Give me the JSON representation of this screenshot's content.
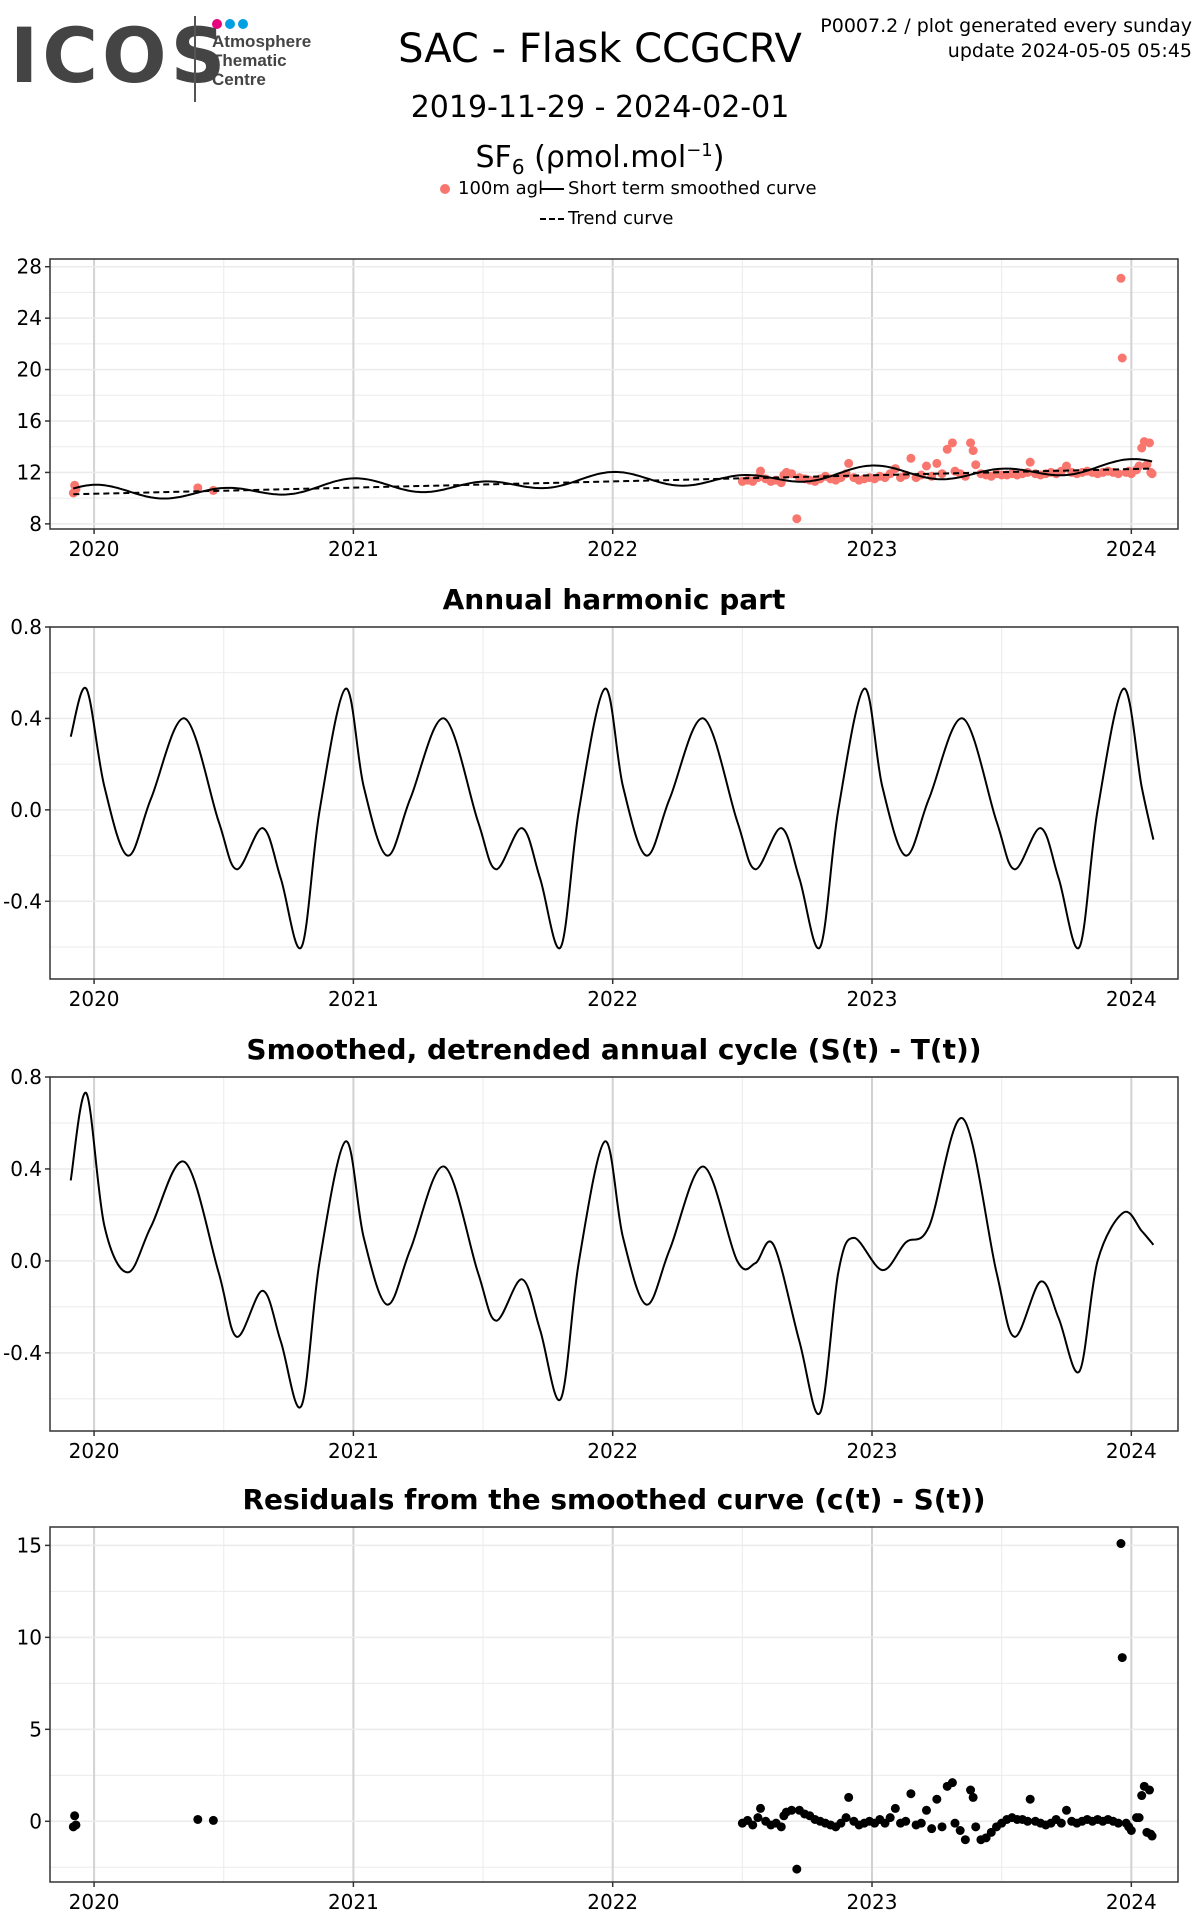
{
  "header": {
    "logo_text": "ICOS",
    "logo_sub": [
      "Atmosphere",
      "Thematic",
      "Centre"
    ],
    "logo_dot_colors": [
      "#e6007e",
      "#009fe3",
      "#00a0e3"
    ],
    "title": "SAC - Flask CCGCRV",
    "date_range": "2019-11-29 - 2024-02-01",
    "gas_main": "SF",
    "gas_sub": "6",
    "gas_unit": " (ρmol.mol",
    "gas_sup": "−1",
    "gas_close": ")",
    "meta_line1": "P0007.2 / plot generated every sunday",
    "meta_line2": "update  2024-05-05 05:45"
  },
  "legend": {
    "points_label": "100m agl",
    "smooth_label": "Short term smoothed curve",
    "trend_label": "Trend curve",
    "point_color": "#f8766d"
  },
  "chart_data": [
    {
      "type": "scatter",
      "title": "",
      "xlabel": "",
      "ylabel": "",
      "xlim": [
        2019.83,
        2024.18
      ],
      "ylim": [
        7.6,
        28.6
      ],
      "yticks": [
        8,
        12,
        16,
        20,
        24,
        28
      ],
      "xticks": [
        2020,
        2021,
        2022,
        2023,
        2024
      ],
      "grid": true,
      "series": [
        {
          "name": "100m agl",
          "points": [
            [
              2019.92,
              10.4
            ],
            [
              2019.925,
              11.0
            ],
            [
              2019.93,
              10.7
            ],
            [
              2020.4,
              10.8
            ],
            [
              2020.46,
              10.6
            ],
            [
              2022.5,
              11.3
            ],
            [
              2022.52,
              11.4
            ],
            [
              2022.54,
              11.3
            ],
            [
              2022.56,
              11.6
            ],
            [
              2022.57,
              12.1
            ],
            [
              2022.59,
              11.5
            ],
            [
              2022.61,
              11.3
            ],
            [
              2022.63,
              11.4
            ],
            [
              2022.65,
              11.2
            ],
            [
              2022.66,
              11.8
            ],
            [
              2022.67,
              12.0
            ],
            [
              2022.69,
              11.9
            ],
            [
              2022.71,
              8.4
            ],
            [
              2022.72,
              11.6
            ],
            [
              2022.74,
              11.5
            ],
            [
              2022.76,
              11.4
            ],
            [
              2022.78,
              11.3
            ],
            [
              2022.8,
              11.5
            ],
            [
              2022.82,
              11.7
            ],
            [
              2022.84,
              11.5
            ],
            [
              2022.86,
              11.4
            ],
            [
              2022.88,
              11.6
            ],
            [
              2022.9,
              11.9
            ],
            [
              2022.91,
              12.7
            ],
            [
              2022.93,
              11.6
            ],
            [
              2022.95,
              11.4
            ],
            [
              2022.97,
              11.5
            ],
            [
              2022.99,
              11.6
            ],
            [
              2023.01,
              11.5
            ],
            [
              2023.03,
              11.7
            ],
            [
              2023.05,
              11.6
            ],
            [
              2023.07,
              11.9
            ],
            [
              2023.09,
              12.3
            ],
            [
              2023.11,
              11.6
            ],
            [
              2023.13,
              11.8
            ],
            [
              2023.15,
              13.1
            ],
            [
              2023.17,
              11.6
            ],
            [
              2023.19,
              11.8
            ],
            [
              2023.21,
              12.5
            ],
            [
              2023.23,
              11.7
            ],
            [
              2023.25,
              12.7
            ],
            [
              2023.27,
              11.9
            ],
            [
              2023.29,
              13.8
            ],
            [
              2023.31,
              14.3
            ],
            [
              2023.32,
              12.1
            ],
            [
              2023.34,
              11.9
            ],
            [
              2023.36,
              11.7
            ],
            [
              2023.38,
              14.3
            ],
            [
              2023.39,
              13.7
            ],
            [
              2023.4,
              12.6
            ],
            [
              2023.42,
              11.9
            ],
            [
              2023.44,
              11.8
            ],
            [
              2023.46,
              11.7
            ],
            [
              2023.48,
              11.9
            ],
            [
              2023.5,
              11.8
            ],
            [
              2023.52,
              11.8
            ],
            [
              2023.54,
              11.9
            ],
            [
              2023.56,
              11.8
            ],
            [
              2023.58,
              11.9
            ],
            [
              2023.6,
              12.0
            ],
            [
              2023.61,
              12.8
            ],
            [
              2023.63,
              11.9
            ],
            [
              2023.65,
              11.8
            ],
            [
              2023.67,
              11.9
            ],
            [
              2023.69,
              12.0
            ],
            [
              2023.71,
              11.9
            ],
            [
              2023.73,
              12.1
            ],
            [
              2023.75,
              12.5
            ],
            [
              2023.77,
              12.0
            ],
            [
              2023.79,
              11.9
            ],
            [
              2023.81,
              12.0
            ],
            [
              2023.83,
              12.1
            ],
            [
              2023.85,
              12.0
            ],
            [
              2023.87,
              11.9
            ],
            [
              2023.89,
              12.0
            ],
            [
              2023.91,
              12.1
            ],
            [
              2023.93,
              12.0
            ],
            [
              2023.95,
              11.9
            ],
            [
              2023.96,
              27.1
            ],
            [
              2023.965,
              20.9
            ],
            [
              2023.98,
              12.0
            ],
            [
              2023.99,
              12.1
            ],
            [
              2024.0,
              11.9
            ],
            [
              2024.02,
              12.2
            ],
            [
              2024.03,
              12.5
            ],
            [
              2024.04,
              13.9
            ],
            [
              2024.05,
              14.4
            ],
            [
              2024.06,
              12.6
            ],
            [
              2024.07,
              14.3
            ],
            [
              2024.075,
              12.0
            ],
            [
              2024.08,
              11.9
            ]
          ]
        },
        {
          "name": "Short term smoothed curve",
          "style": "solid"
        },
        {
          "name": "Trend curve",
          "style": "dashed"
        }
      ]
    },
    {
      "type": "line",
      "title": "Annual harmonic part",
      "xlabel": "",
      "ylabel": "",
      "xlim": [
        2019.83,
        2024.18
      ],
      "ylim": [
        -0.74,
        0.8
      ],
      "yticks": [
        0.8,
        0.4,
        0.0,
        -0.4
      ],
      "ytick_labels": [
        "0.8",
        "0.4",
        "0.0",
        "-0.4"
      ],
      "xticks": [
        2020,
        2021,
        2022,
        2023,
        2024
      ],
      "grid": true,
      "x": [
        2019.91,
        2019.97,
        2020.04,
        2020.13,
        2020.22,
        2020.35,
        2020.48,
        2020.55,
        2020.65,
        2020.72,
        2020.8,
        2020.87,
        2020.97,
        2021.04,
        2021.13,
        2021.22,
        2021.35,
        2021.48,
        2021.55,
        2021.65,
        2021.72,
        2021.8,
        2021.87,
        2021.97,
        2022.04,
        2022.13,
        2022.22,
        2022.35,
        2022.48,
        2022.55,
        2022.65,
        2022.72,
        2022.8,
        2022.87,
        2022.97,
        2023.04,
        2023.13,
        2023.22,
        2023.35,
        2023.48,
        2023.55,
        2023.65,
        2023.72,
        2023.8,
        2023.87,
        2023.97,
        2024.04,
        2024.085
      ],
      "y": [
        0.32,
        0.53,
        0.1,
        -0.2,
        0.05,
        0.4,
        -0.05,
        -0.26,
        -0.08,
        -0.3,
        -0.6,
        0.0,
        0.53,
        0.1,
        -0.2,
        0.05,
        0.4,
        -0.05,
        -0.26,
        -0.08,
        -0.3,
        -0.6,
        0.0,
        0.53,
        0.1,
        -0.2,
        0.05,
        0.4,
        -0.05,
        -0.26,
        -0.08,
        -0.3,
        -0.6,
        0.0,
        0.53,
        0.1,
        -0.2,
        0.05,
        0.4,
        -0.05,
        -0.26,
        -0.08,
        -0.3,
        -0.6,
        0.0,
        0.53,
        0.1,
        -0.13
      ]
    },
    {
      "type": "line",
      "title": "Smoothed, detrended annual cycle (S(t) - T(t))",
      "xlabel": "",
      "ylabel": "",
      "xlim": [
        2019.83,
        2024.18
      ],
      "ylim": [
        -0.74,
        0.8
      ],
      "yticks": [
        0.8,
        0.4,
        0.0,
        -0.4
      ],
      "ytick_labels": [
        "0.8",
        "0.4",
        "0.0",
        "-0.4"
      ],
      "xticks": [
        2020,
        2021,
        2022,
        2023,
        2024
      ],
      "grid": true,
      "x": [
        2019.91,
        2019.97,
        2020.04,
        2020.13,
        2020.22,
        2020.35,
        2020.48,
        2020.55,
        2020.65,
        2020.72,
        2020.8,
        2020.87,
        2020.97,
        2021.04,
        2021.13,
        2021.22,
        2021.35,
        2021.48,
        2021.55,
        2021.65,
        2021.72,
        2021.8,
        2021.87,
        2021.97,
        2022.04,
        2022.13,
        2022.22,
        2022.35,
        2022.48,
        2022.55,
        2022.62,
        2022.72,
        2022.8,
        2022.87,
        2022.93,
        2023.04,
        2023.13,
        2023.22,
        2023.35,
        2023.48,
        2023.55,
        2023.65,
        2023.72,
        2023.8,
        2023.87,
        2023.97,
        2024.04,
        2024.085
      ],
      "y": [
        0.35,
        0.73,
        0.15,
        -0.05,
        0.15,
        0.43,
        -0.05,
        -0.33,
        -0.13,
        -0.35,
        -0.63,
        0.0,
        0.52,
        0.1,
        -0.19,
        0.05,
        0.41,
        -0.05,
        -0.26,
        -0.08,
        -0.3,
        -0.6,
        0.0,
        0.52,
        0.1,
        -0.19,
        0.05,
        0.41,
        0.0,
        -0.01,
        0.07,
        -0.35,
        -0.66,
        -0.05,
        0.1,
        -0.04,
        0.08,
        0.15,
        0.62,
        -0.05,
        -0.33,
        -0.09,
        -0.25,
        -0.48,
        0.0,
        0.21,
        0.13,
        0.07
      ]
    },
    {
      "type": "scatter",
      "title": "Residuals from the smoothed curve (c(t) - S(t))",
      "xlabel": "",
      "ylabel": "",
      "xlim": [
        2019.83,
        2024.18
      ],
      "ylim": [
        -3.3,
        16.0
      ],
      "yticks": [
        15,
        10,
        5,
        0
      ],
      "xticks": [
        2020,
        2021,
        2022,
        2023,
        2024
      ],
      "grid": true,
      "points": [
        [
          2019.92,
          -0.3
        ],
        [
          2019.925,
          0.3
        ],
        [
          2019.93,
          -0.2
        ],
        [
          2020.4,
          0.1
        ],
        [
          2020.46,
          0.05
        ],
        [
          2022.5,
          -0.1
        ],
        [
          2022.52,
          0.05
        ],
        [
          2022.54,
          -0.2
        ],
        [
          2022.56,
          0.2
        ],
        [
          2022.57,
          0.7
        ],
        [
          2022.59,
          0.0
        ],
        [
          2022.61,
          -0.2
        ],
        [
          2022.63,
          -0.1
        ],
        [
          2022.65,
          -0.3
        ],
        [
          2022.66,
          0.3
        ],
        [
          2022.67,
          0.5
        ],
        [
          2022.69,
          0.6
        ],
        [
          2022.71,
          -2.6
        ],
        [
          2022.72,
          0.6
        ],
        [
          2022.74,
          0.4
        ],
        [
          2022.76,
          0.3
        ],
        [
          2022.78,
          0.1
        ],
        [
          2022.8,
          0.0
        ],
        [
          2022.82,
          -0.1
        ],
        [
          2022.84,
          -0.2
        ],
        [
          2022.86,
          -0.3
        ],
        [
          2022.88,
          -0.1
        ],
        [
          2022.9,
          0.2
        ],
        [
          2022.91,
          1.3
        ],
        [
          2022.93,
          0.0
        ],
        [
          2022.95,
          -0.2
        ],
        [
          2022.97,
          -0.1
        ],
        [
          2022.99,
          0.0
        ],
        [
          2023.01,
          -0.1
        ],
        [
          2023.03,
          0.1
        ],
        [
          2023.05,
          -0.1
        ],
        [
          2023.07,
          0.2
        ],
        [
          2023.09,
          0.7
        ],
        [
          2023.11,
          -0.1
        ],
        [
          2023.13,
          0.0
        ],
        [
          2023.15,
          1.5
        ],
        [
          2023.17,
          -0.2
        ],
        [
          2023.19,
          -0.1
        ],
        [
          2023.21,
          0.6
        ],
        [
          2023.23,
          -0.4
        ],
        [
          2023.25,
          1.2
        ],
        [
          2023.27,
          -0.3
        ],
        [
          2023.29,
          1.9
        ],
        [
          2023.31,
          2.1
        ],
        [
          2023.32,
          -0.1
        ],
        [
          2023.34,
          -0.5
        ],
        [
          2023.36,
          -1.0
        ],
        [
          2023.38,
          1.7
        ],
        [
          2023.39,
          1.3
        ],
        [
          2023.4,
          -0.3
        ],
        [
          2023.42,
          -1.0
        ],
        [
          2023.44,
          -0.9
        ],
        [
          2023.46,
          -0.6
        ],
        [
          2023.48,
          -0.3
        ],
        [
          2023.5,
          -0.1
        ],
        [
          2023.52,
          0.1
        ],
        [
          2023.54,
          0.2
        ],
        [
          2023.56,
          0.1
        ],
        [
          2023.58,
          0.1
        ],
        [
          2023.6,
          0.0
        ],
        [
          2023.61,
          1.2
        ],
        [
          2023.63,
          0.0
        ],
        [
          2023.65,
          -0.1
        ],
        [
          2023.67,
          -0.2
        ],
        [
          2023.69,
          -0.1
        ],
        [
          2023.71,
          0.1
        ],
        [
          2023.73,
          -0.1
        ],
        [
          2023.75,
          0.6
        ],
        [
          2023.77,
          0.0
        ],
        [
          2023.79,
          -0.1
        ],
        [
          2023.81,
          0.0
        ],
        [
          2023.83,
          0.1
        ],
        [
          2023.85,
          0.0
        ],
        [
          2023.87,
          0.1
        ],
        [
          2023.89,
          0.0
        ],
        [
          2023.91,
          0.1
        ],
        [
          2023.93,
          0.0
        ],
        [
          2023.95,
          -0.1
        ],
        [
          2023.96,
          15.1
        ],
        [
          2023.965,
          8.9
        ],
        [
          2023.98,
          -0.1
        ],
        [
          2023.99,
          -0.3
        ],
        [
          2024.0,
          -0.5
        ],
        [
          2024.02,
          0.2
        ],
        [
          2024.03,
          0.2
        ],
        [
          2024.04,
          1.4
        ],
        [
          2024.05,
          1.9
        ],
        [
          2024.06,
          -0.6
        ],
        [
          2024.07,
          1.7
        ],
        [
          2024.075,
          -0.7
        ],
        [
          2024.08,
          -0.8
        ]
      ]
    }
  ]
}
